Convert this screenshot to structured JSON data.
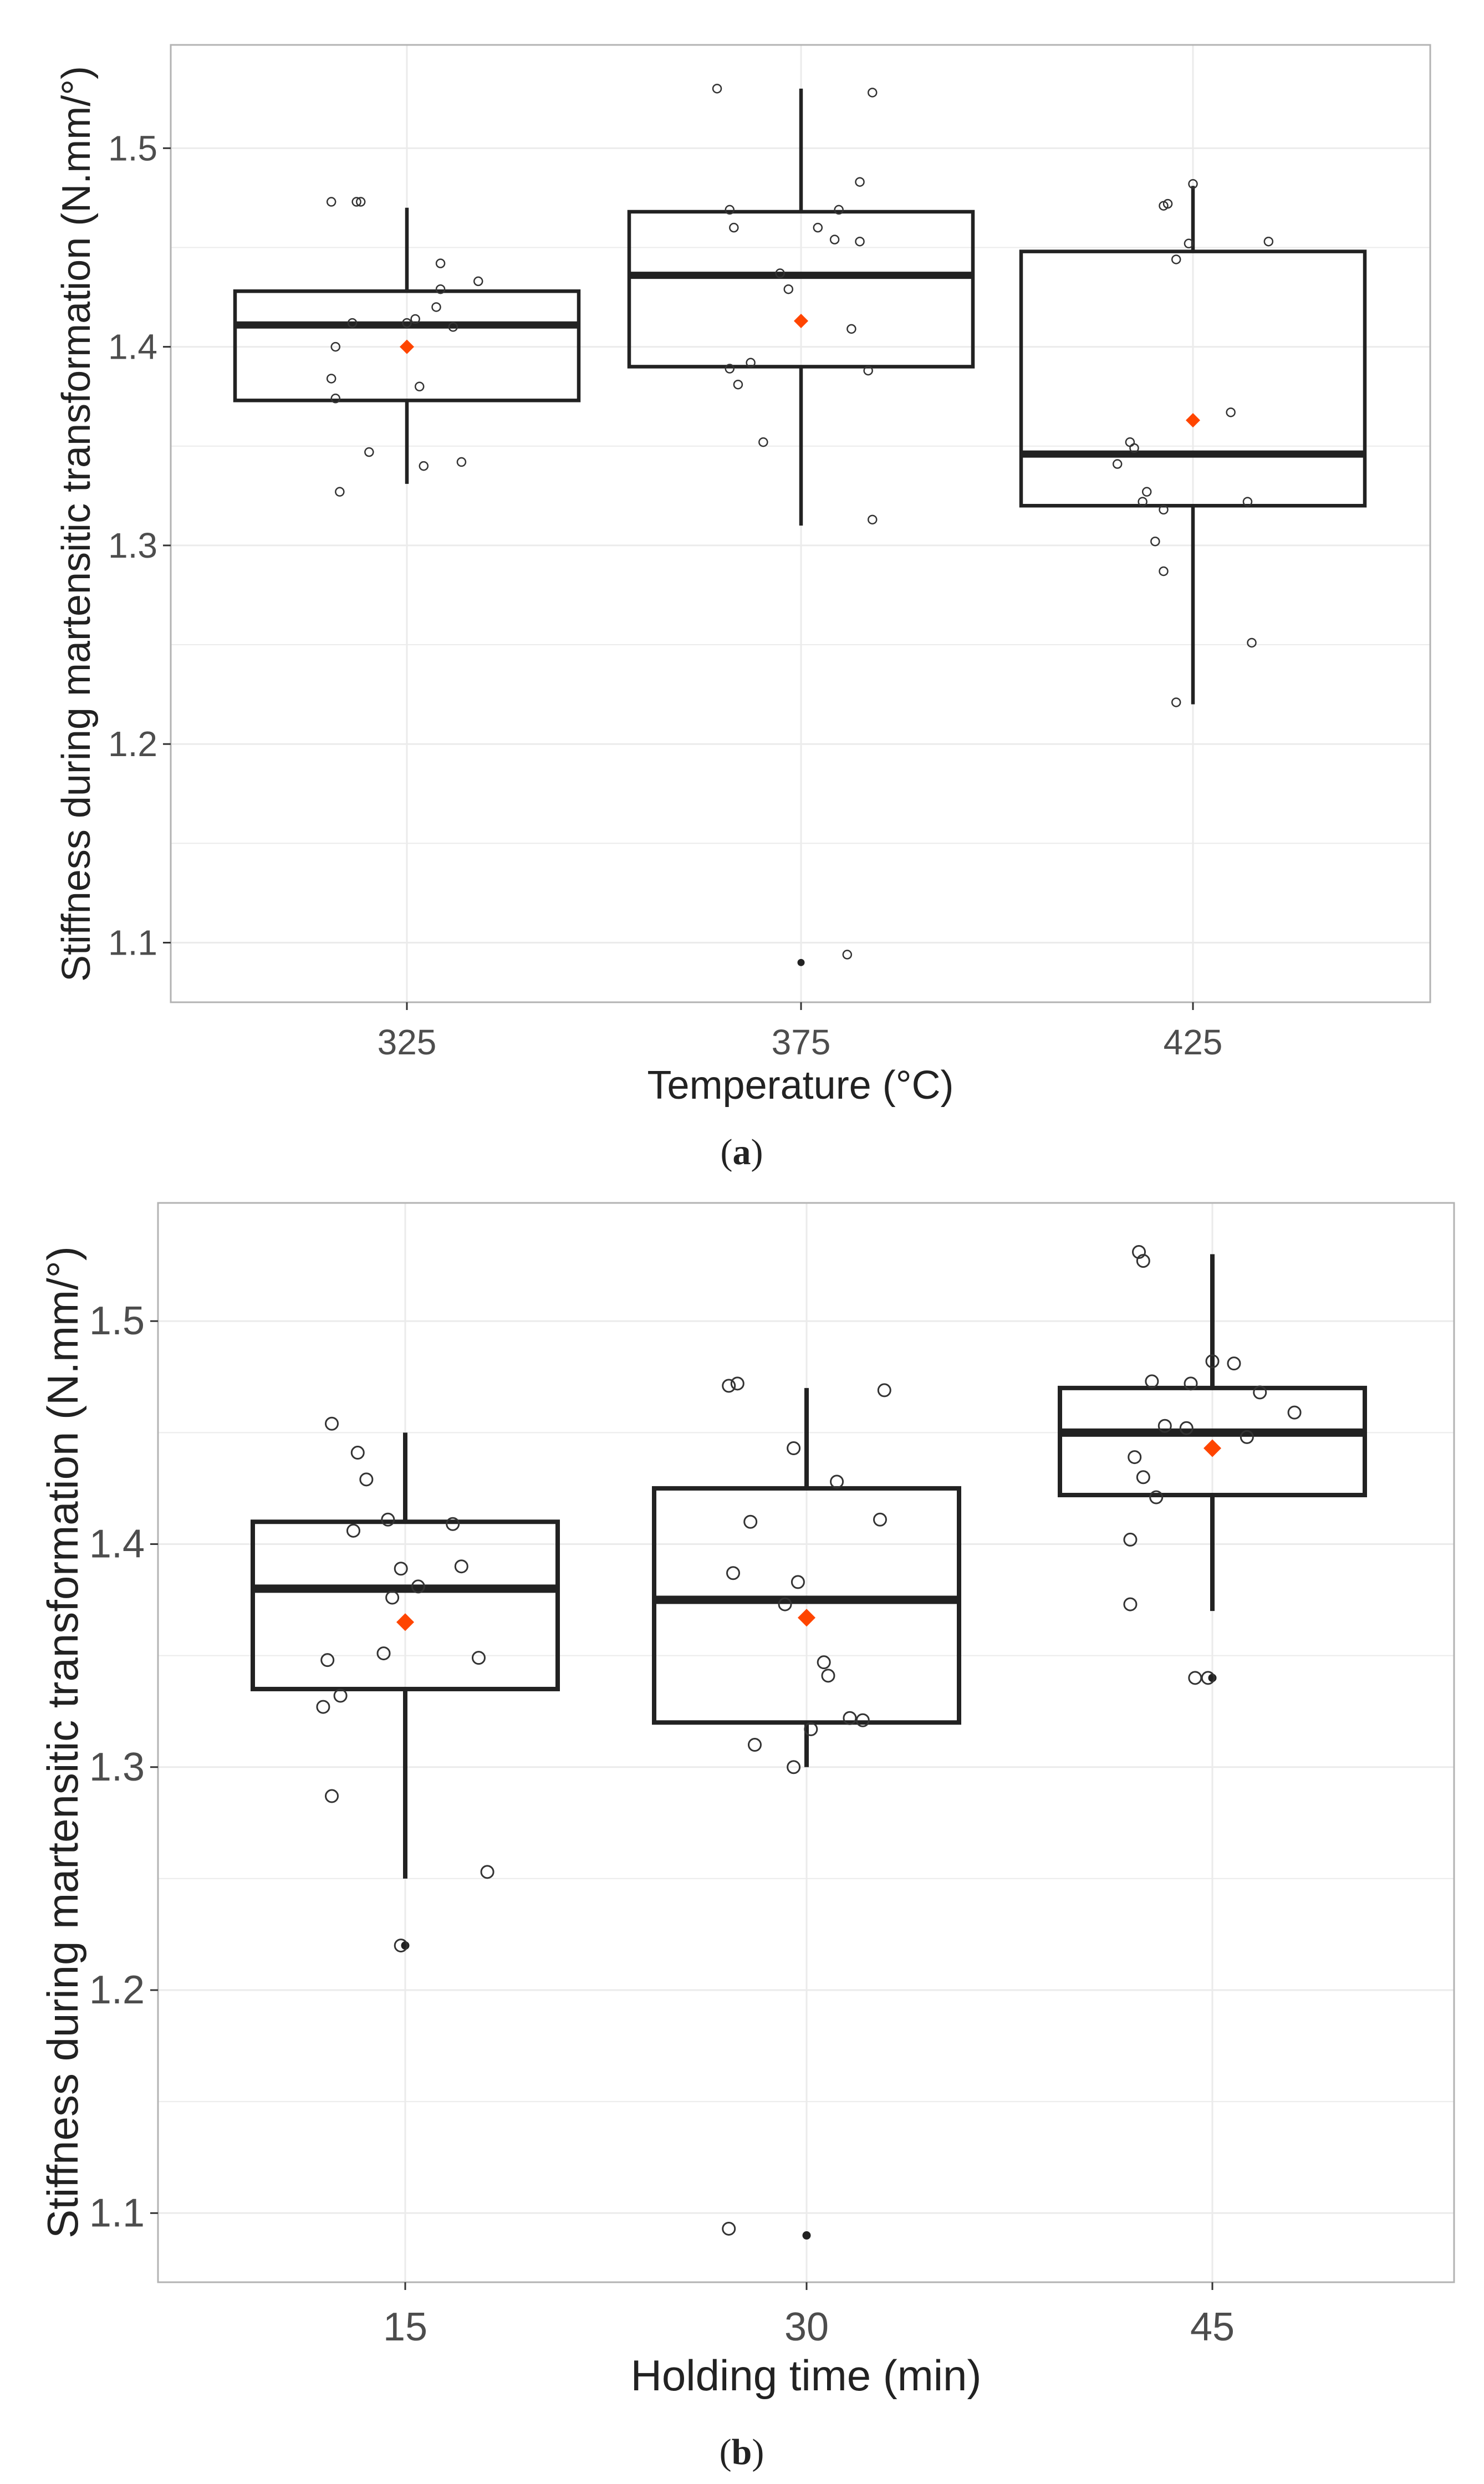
{
  "colors": {
    "panel_border": "#b3b3b3",
    "grid": "#ebebeb",
    "box": "#222222",
    "point": "#333333",
    "mean": "#ff4500",
    "text": "#222222",
    "tick_text": "#4d4d4d"
  },
  "chart_data": [
    {
      "type": "box",
      "caption_letter": "a",
      "caption_open": "(",
      "caption_close": ")",
      "xlabel": "Temperature (°C)",
      "ylabel": "Stiffness during martensitic transformation (N.mm/°)",
      "ylim": [
        1.07,
        1.552
      ],
      "yticks": [
        1.1,
        1.2,
        1.3,
        1.4,
        1.5
      ],
      "ytick_labels": [
        "1.1",
        "1.2",
        "1.3",
        "1.4",
        "1.5"
      ],
      "categories": [
        "325",
        "375",
        "425"
      ],
      "grid": true,
      "boxes": [
        {
          "q1": 1.373,
          "median": 1.411,
          "q3": 1.428,
          "whisker_low": 1.331,
          "whisker_high": 1.47,
          "mean": 1.4,
          "outliers": []
        },
        {
          "q1": 1.39,
          "median": 1.436,
          "q3": 1.468,
          "whisker_low": 1.31,
          "whisker_high": 1.53,
          "mean": 1.413,
          "outliers": [
            1.09
          ]
        },
        {
          "q1": 1.32,
          "median": 1.346,
          "q3": 1.448,
          "whisker_low": 1.22,
          "whisker_high": 1.481,
          "mean": 1.363,
          "outliers": []
        }
      ],
      "jitter": [
        [
          {
            "dx": -0.12,
            "y": 1.473
          },
          {
            "dx": -0.11,
            "y": 1.473
          },
          {
            "dx": -0.18,
            "y": 1.473
          },
          {
            "dx": 0.08,
            "y": 1.442
          },
          {
            "dx": 0.17,
            "y": 1.433
          },
          {
            "dx": 0.08,
            "y": 1.429
          },
          {
            "dx": 0.07,
            "y": 1.42
          },
          {
            "dx": -0.13,
            "y": 1.412
          },
          {
            "dx": 0.02,
            "y": 1.414
          },
          {
            "dx": 0.11,
            "y": 1.41
          },
          {
            "dx": 0.0,
            "y": 1.412
          },
          {
            "dx": -0.17,
            "y": 1.4
          },
          {
            "dx": -0.18,
            "y": 1.384
          },
          {
            "dx": 0.03,
            "y": 1.38
          },
          {
            "dx": -0.17,
            "y": 1.374
          },
          {
            "dx": -0.09,
            "y": 1.347
          },
          {
            "dx": 0.13,
            "y": 1.342
          },
          {
            "dx": 0.04,
            "y": 1.34
          },
          {
            "dx": -0.16,
            "y": 1.327
          }
        ],
        [
          {
            "dx": -0.2,
            "y": 1.53
          },
          {
            "dx": 0.17,
            "y": 1.528
          },
          {
            "dx": 0.14,
            "y": 1.483
          },
          {
            "dx": -0.17,
            "y": 1.469
          },
          {
            "dx": 0.09,
            "y": 1.469
          },
          {
            "dx": -0.16,
            "y": 1.46
          },
          {
            "dx": 0.04,
            "y": 1.46
          },
          {
            "dx": 0.08,
            "y": 1.454
          },
          {
            "dx": 0.14,
            "y": 1.453
          },
          {
            "dx": -0.05,
            "y": 1.437
          },
          {
            "dx": -0.03,
            "y": 1.429
          },
          {
            "dx": 0.12,
            "y": 1.409
          },
          {
            "dx": -0.12,
            "y": 1.392
          },
          {
            "dx": -0.17,
            "y": 1.389
          },
          {
            "dx": 0.16,
            "y": 1.388
          },
          {
            "dx": -0.15,
            "y": 1.381
          },
          {
            "dx": -0.09,
            "y": 1.352
          },
          {
            "dx": 0.17,
            "y": 1.313
          },
          {
            "dx": 0.11,
            "y": 1.094
          }
        ],
        [
          {
            "dx": -0.07,
            "y": 1.471
          },
          {
            "dx": -0.06,
            "y": 1.472
          },
          {
            "dx": 0.0,
            "y": 1.482
          },
          {
            "dx": 0.18,
            "y": 1.453
          },
          {
            "dx": -0.01,
            "y": 1.452
          },
          {
            "dx": -0.04,
            "y": 1.444
          },
          {
            "dx": 0.09,
            "y": 1.367
          },
          {
            "dx": -0.15,
            "y": 1.352
          },
          {
            "dx": -0.14,
            "y": 1.349
          },
          {
            "dx": -0.18,
            "y": 1.341
          },
          {
            "dx": -0.11,
            "y": 1.327
          },
          {
            "dx": -0.12,
            "y": 1.322
          },
          {
            "dx": 0.13,
            "y": 1.322
          },
          {
            "dx": -0.07,
            "y": 1.318
          },
          {
            "dx": -0.09,
            "y": 1.302
          },
          {
            "dx": -0.07,
            "y": 1.287
          },
          {
            "dx": 0.14,
            "y": 1.251
          },
          {
            "dx": -0.04,
            "y": 1.221
          }
        ]
      ]
    },
    {
      "type": "box",
      "caption_letter": "b",
      "caption_open": "(",
      "caption_close": ")",
      "xlabel": "Holding time (min)",
      "ylabel": "Stiffness during martensitic transformation (N.mm/°)",
      "ylim": [
        1.069,
        1.553
      ],
      "yticks": [
        1.1,
        1.2,
        1.3,
        1.4,
        1.5
      ],
      "ytick_labels": [
        "1.1",
        "1.2",
        "1.3",
        "1.4",
        "1.5"
      ],
      "categories": [
        "15",
        "30",
        "45"
      ],
      "grid": true,
      "boxes": [
        {
          "q1": 1.335,
          "median": 1.38,
          "q3": 1.41,
          "whisker_low": 1.25,
          "whisker_high": 1.45,
          "mean": 1.365,
          "outliers": [
            1.22
          ]
        },
        {
          "q1": 1.32,
          "median": 1.375,
          "q3": 1.425,
          "whisker_low": 1.3,
          "whisker_high": 1.47,
          "mean": 1.367,
          "outliers": [
            1.09
          ]
        },
        {
          "q1": 1.422,
          "median": 1.45,
          "q3": 1.47,
          "whisker_low": 1.37,
          "whisker_high": 1.53,
          "mean": 1.443,
          "outliers": [
            1.34
          ]
        }
      ],
      "jitter": [
        [
          {
            "dx": -0.17,
            "y": 1.454
          },
          {
            "dx": -0.11,
            "y": 1.441
          },
          {
            "dx": -0.09,
            "y": 1.429
          },
          {
            "dx": -0.04,
            "y": 1.411
          },
          {
            "dx": -0.12,
            "y": 1.406
          },
          {
            "dx": 0.11,
            "y": 1.409
          },
          {
            "dx": 0.13,
            "y": 1.39
          },
          {
            "dx": -0.01,
            "y": 1.389
          },
          {
            "dx": 0.03,
            "y": 1.381
          },
          {
            "dx": -0.03,
            "y": 1.376
          },
          {
            "dx": -0.18,
            "y": 1.348
          },
          {
            "dx": -0.05,
            "y": 1.351
          },
          {
            "dx": 0.17,
            "y": 1.349
          },
          {
            "dx": -0.15,
            "y": 1.332
          },
          {
            "dx": -0.19,
            "y": 1.327
          },
          {
            "dx": -0.17,
            "y": 1.287
          },
          {
            "dx": 0.19,
            "y": 1.253
          },
          {
            "dx": -0.01,
            "y": 1.22
          }
        ],
        [
          {
            "dx": -0.18,
            "y": 1.471
          },
          {
            "dx": -0.16,
            "y": 1.472
          },
          {
            "dx": 0.18,
            "y": 1.469
          },
          {
            "dx": -0.03,
            "y": 1.443
          },
          {
            "dx": 0.07,
            "y": 1.428
          },
          {
            "dx": 0.17,
            "y": 1.411
          },
          {
            "dx": -0.13,
            "y": 1.41
          },
          {
            "dx": -0.17,
            "y": 1.387
          },
          {
            "dx": -0.02,
            "y": 1.383
          },
          {
            "dx": -0.05,
            "y": 1.373
          },
          {
            "dx": 0.04,
            "y": 1.347
          },
          {
            "dx": 0.05,
            "y": 1.341
          },
          {
            "dx": 0.1,
            "y": 1.322
          },
          {
            "dx": 0.13,
            "y": 1.321
          },
          {
            "dx": 0.01,
            "y": 1.317
          },
          {
            "dx": -0.12,
            "y": 1.31
          },
          {
            "dx": -0.03,
            "y": 1.3
          },
          {
            "dx": -0.18,
            "y": 1.093
          }
        ],
        [
          {
            "dx": -0.17,
            "y": 1.531
          },
          {
            "dx": -0.16,
            "y": 1.527
          },
          {
            "dx": 0.0,
            "y": 1.482
          },
          {
            "dx": 0.05,
            "y": 1.481
          },
          {
            "dx": -0.14,
            "y": 1.473
          },
          {
            "dx": -0.05,
            "y": 1.472
          },
          {
            "dx": 0.11,
            "y": 1.468
          },
          {
            "dx": 0.19,
            "y": 1.459
          },
          {
            "dx": -0.11,
            "y": 1.453
          },
          {
            "dx": -0.06,
            "y": 1.452
          },
          {
            "dx": 0.08,
            "y": 1.448
          },
          {
            "dx": -0.18,
            "y": 1.439
          },
          {
            "dx": -0.16,
            "y": 1.43
          },
          {
            "dx": -0.13,
            "y": 1.421
          },
          {
            "dx": -0.19,
            "y": 1.402
          },
          {
            "dx": -0.19,
            "y": 1.373
          },
          {
            "dx": -0.04,
            "y": 1.34
          },
          {
            "dx": -0.01,
            "y": 1.34
          }
        ]
      ]
    }
  ]
}
